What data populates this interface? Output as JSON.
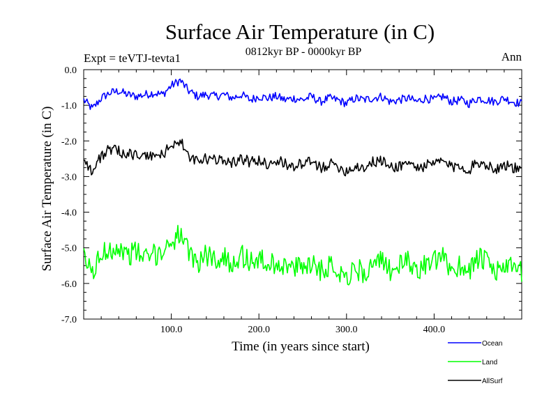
{
  "chart_data": {
    "type": "line",
    "title": "Surface Air Temperature (in C)",
    "subtitle_left": "Expt = teVTJ-tevta1",
    "subtitle_center": "0812kyr BP - 0000kyr BP",
    "subtitle_right": "Ann",
    "xlabel": "Time (in years since start)",
    "ylabel": "Surface Air Temperature (in C)",
    "xlim": [
      0,
      500
    ],
    "ylim": [
      -7.0,
      0.0
    ],
    "xticks": [
      100,
      200,
      300,
      400
    ],
    "xtick_labels": [
      "100.0",
      "200.0",
      "300.0",
      "400.0"
    ],
    "yticks": [
      0,
      -1,
      -2,
      -3,
      -4,
      -5,
      -6,
      -7
    ],
    "ytick_labels": [
      "0.0",
      "-1.0",
      "-2.0",
      "-3.0",
      "-4.0",
      "-5.0",
      "-6.0",
      "-7.0"
    ],
    "x": [
      0,
      10,
      20,
      30,
      40,
      50,
      60,
      70,
      80,
      90,
      100,
      110,
      120,
      130,
      140,
      150,
      160,
      170,
      180,
      190,
      200,
      210,
      220,
      230,
      240,
      250,
      260,
      270,
      280,
      290,
      300,
      310,
      320,
      330,
      340,
      350,
      360,
      370,
      380,
      390,
      400,
      410,
      420,
      430,
      440,
      450,
      460,
      470,
      480,
      490,
      500
    ],
    "series": [
      {
        "name": "Ocean",
        "color": "#0000ff",
        "values": [
          -0.85,
          -1.1,
          -0.8,
          -0.65,
          -0.6,
          -0.7,
          -0.75,
          -0.7,
          -0.65,
          -0.7,
          -0.45,
          -0.3,
          -0.6,
          -0.75,
          -0.7,
          -0.75,
          -0.7,
          -0.8,
          -0.7,
          -0.85,
          -0.75,
          -0.8,
          -0.75,
          -0.85,
          -0.8,
          -0.85,
          -0.75,
          -0.9,
          -0.8,
          -0.85,
          -0.95,
          -0.8,
          -0.85,
          -0.8,
          -0.75,
          -0.9,
          -0.85,
          -0.8,
          -0.9,
          -0.8,
          -0.85,
          -0.75,
          -0.9,
          -0.85,
          -0.95,
          -0.8,
          -0.85,
          -0.9,
          -0.8,
          -0.9,
          -0.95
        ]
      },
      {
        "name": "Land",
        "color": "#00ff00",
        "values": [
          -5.3,
          -5.7,
          -5.2,
          -5.0,
          -5.0,
          -5.2,
          -5.1,
          -5.3,
          -5.2,
          -5.1,
          -4.8,
          -4.6,
          -5.2,
          -5.4,
          -5.2,
          -5.3,
          -5.3,
          -5.4,
          -5.2,
          -5.4,
          -5.3,
          -5.5,
          -5.4,
          -5.5,
          -5.6,
          -5.5,
          -5.4,
          -5.6,
          -5.5,
          -5.6,
          -5.8,
          -5.6,
          -5.7,
          -5.5,
          -5.4,
          -5.6,
          -5.5,
          -5.4,
          -5.6,
          -5.5,
          -5.4,
          -5.3,
          -5.6,
          -5.5,
          -5.6,
          -5.3,
          -5.4,
          -5.7,
          -5.5,
          -5.6,
          -5.7
        ]
      },
      {
        "name": "AllSurf",
        "color": "#000000",
        "values": [
          -2.45,
          -2.9,
          -2.4,
          -2.25,
          -2.3,
          -2.35,
          -2.4,
          -2.45,
          -2.4,
          -2.4,
          -2.1,
          -2.0,
          -2.45,
          -2.6,
          -2.5,
          -2.55,
          -2.5,
          -2.6,
          -2.5,
          -2.6,
          -2.55,
          -2.65,
          -2.55,
          -2.65,
          -2.7,
          -2.65,
          -2.6,
          -2.75,
          -2.65,
          -2.7,
          -2.85,
          -2.7,
          -2.75,
          -2.6,
          -2.55,
          -2.75,
          -2.7,
          -2.6,
          -2.75,
          -2.7,
          -2.65,
          -2.55,
          -2.75,
          -2.7,
          -2.8,
          -2.6,
          -2.65,
          -2.8,
          -2.65,
          -2.75,
          -2.85
        ]
      }
    ],
    "legend": [
      "Ocean",
      "Land",
      "AllSurf"
    ],
    "legend_position": "bottom-right",
    "grid": false
  }
}
